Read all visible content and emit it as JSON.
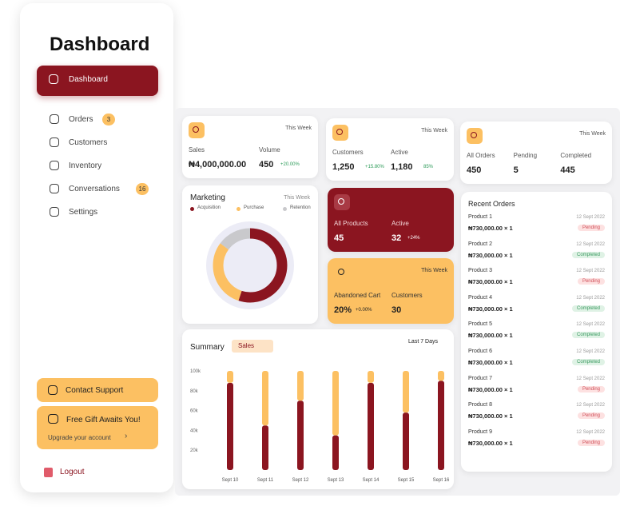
{
  "sidebar": {
    "title": "Dashboard",
    "menu": [
      {
        "label": "Dashboard"
      },
      {
        "label": "Orders",
        "badge": "3"
      },
      {
        "label": "Customers"
      },
      {
        "label": "Inventory"
      },
      {
        "label": "Conversations",
        "badge": "16"
      },
      {
        "label": "Settings"
      }
    ],
    "contact": "Contact Support",
    "gift_title": "Free Gift Awaits You!",
    "gift_link": "Upgrade your account",
    "logout": "Logout"
  },
  "cards": [
    {
      "period": "This Week",
      "stats": [
        {
          "label": "Sales",
          "value": "₦4,000,000.00"
        },
        {
          "label": "Volume",
          "value": "450",
          "change": "+20.00%"
        }
      ]
    },
    {
      "period": "This Week",
      "stats": [
        {
          "label": "Customers",
          "value": "1,250",
          "change": "+15.80%"
        },
        {
          "label": "Active",
          "value": "1,180",
          "change": "85%"
        }
      ]
    },
    {
      "period": "This Week",
      "stats": [
        {
          "label": "All Orders",
          "value": "450"
        },
        {
          "label": "Pending",
          "value": "5"
        },
        {
          "label": "Completed",
          "value": "445"
        }
      ]
    }
  ],
  "products_card": {
    "stats": [
      {
        "label": "All Products",
        "value": "45"
      },
      {
        "label": "Active",
        "value": "32",
        "change": "+24%"
      }
    ]
  },
  "cart_card": {
    "period": "This Week",
    "stats": [
      {
        "label": "Abandoned Cart",
        "value": "20%",
        "change": "+0.00%"
      },
      {
        "label": "Customers",
        "value": "30"
      }
    ]
  },
  "marketing": {
    "type": "pie",
    "title": "Marketing",
    "period": "This Week",
    "categories": [
      "Acquisition",
      "Purchase",
      "Retention"
    ],
    "values": [
      55,
      30,
      15
    ],
    "colors": [
      "#8b1520",
      "#fcc062",
      "#c9c9cc"
    ]
  },
  "summary": {
    "type": "bar",
    "title": "Summary",
    "filter": "Sales",
    "period": "Last 7 Days",
    "categories": [
      "Sept 10",
      "Sept 11",
      "Sept 12",
      "Sept 13",
      "Sept 14",
      "Sept 15",
      "Sept 16"
    ],
    "series": [
      {
        "color": "#8b1520",
        "values": [
          88000,
          45000,
          70000,
          35000,
          88000,
          58000,
          90000
        ]
      },
      {
        "color": "#fcc062",
        "values": [
          12000,
          55000,
          30000,
          65000,
          12000,
          42000,
          10000
        ]
      }
    ],
    "ylim": [
      0,
      100000
    ],
    "yticks": [
      {
        "value": 20000,
        "label": "20k"
      },
      {
        "value": 40000,
        "label": "40k"
      },
      {
        "value": 60000,
        "label": "60k"
      },
      {
        "value": 80000,
        "label": "80k"
      },
      {
        "value": 100000,
        "label": "100k"
      }
    ]
  },
  "recent_orders": {
    "title": "Recent Orders",
    "orders": [
      {
        "product": "Product 1",
        "date": "12 Sept 2022",
        "amount": "₦730,000.00 × 1",
        "status": "Pending"
      },
      {
        "product": "Product 2",
        "date": "12 Sept 2022",
        "amount": "₦730,000.00 × 1",
        "status": "Completed"
      },
      {
        "product": "Product 3",
        "date": "12 Sept 2022",
        "amount": "₦730,000.00 × 1",
        "status": "Pending"
      },
      {
        "product": "Product 4",
        "date": "12 Sept 2022",
        "amount": "₦730,000.00 × 1",
        "status": "Completed"
      },
      {
        "product": "Product 5",
        "date": "12 Sept 2022",
        "amount": "₦730,000.00 × 1",
        "status": "Completed"
      },
      {
        "product": "Product 6",
        "date": "12 Sept 2022",
        "amount": "₦730,000.00 × 1",
        "status": "Completed"
      },
      {
        "product": "Product 7",
        "date": "12 Sept 2022",
        "amount": "₦730,000.00 × 1",
        "status": "Pending"
      },
      {
        "product": "Product 8",
        "date": "12 Sept 2022",
        "amount": "₦730,000.00 × 1",
        "status": "Pending"
      },
      {
        "product": "Product 9",
        "date": "12 Sept 2022",
        "amount": "₦730,000.00 × 1",
        "status": "Pending"
      }
    ]
  }
}
